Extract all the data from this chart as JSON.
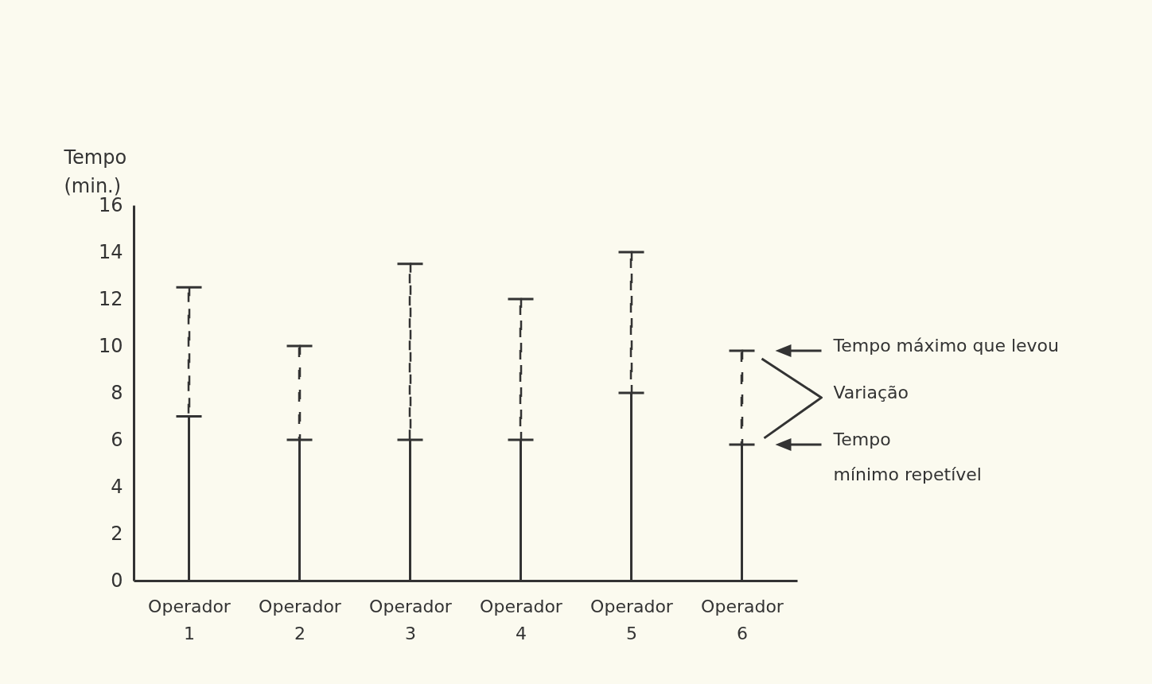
{
  "chart_data": {
    "type": "bar",
    "stacked": true,
    "ylabel": "Tempo (min.)",
    "categories": [
      "Operador 1",
      "Operador 2",
      "Operador 3",
      "Operador 4",
      "Operador 5",
      "Operador 6"
    ],
    "series": [
      {
        "color": "#333333",
        "line_style": "solid",
        "values": [
          7,
          6,
          6,
          6,
          8,
          5.8
        ]
      },
      {
        "color": "#333333",
        "line_style": "dashed",
        "values": [
          5.5,
          4,
          7.5,
          6,
          6,
          4
        ]
      }
    ],
    "ylim": [
      0,
      16
    ],
    "yticks": [
      0,
      2,
      4,
      6,
      8,
      10,
      12,
      14,
      16
    ],
    "grid": false,
    "annotations": [
      "Tempo máximo que levou",
      "Variação",
      "Tempo\nmínimo repetível"
    ]
  }
}
